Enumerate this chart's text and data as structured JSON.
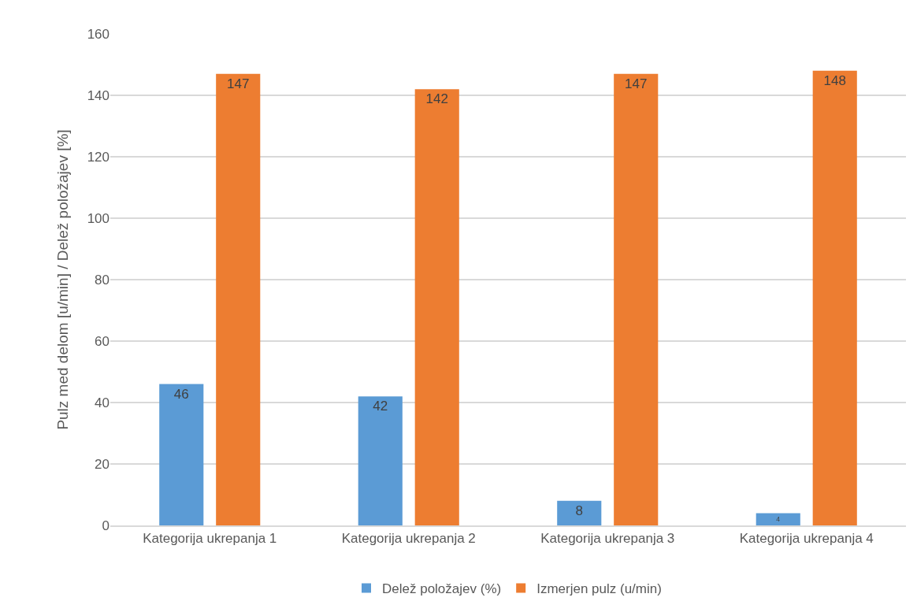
{
  "chart_data": {
    "type": "bar",
    "ylabel": "Pulz med delom [u/min] / Delež položajev [%]",
    "categories": [
      "Kategorija ukrepanja 1",
      "Kategorija ukrepanja 2",
      "Kategorija ukrepanja 3",
      "Kategorija ukrepanja 4"
    ],
    "series": [
      {
        "name": "Delež položajev (%)",
        "color": "#5b9bd5",
        "values": [
          46,
          42,
          8,
          4
        ]
      },
      {
        "name": "Izmerjen pulz (u/min)",
        "color": "#ed7d31",
        "values": [
          147,
          142,
          147,
          148
        ]
      }
    ],
    "ylim": [
      0,
      160
    ],
    "yticks": [
      0,
      20,
      40,
      60,
      80,
      100,
      120,
      140,
      160
    ],
    "grid": "y",
    "legend": "bottom",
    "data_labels": true
  }
}
